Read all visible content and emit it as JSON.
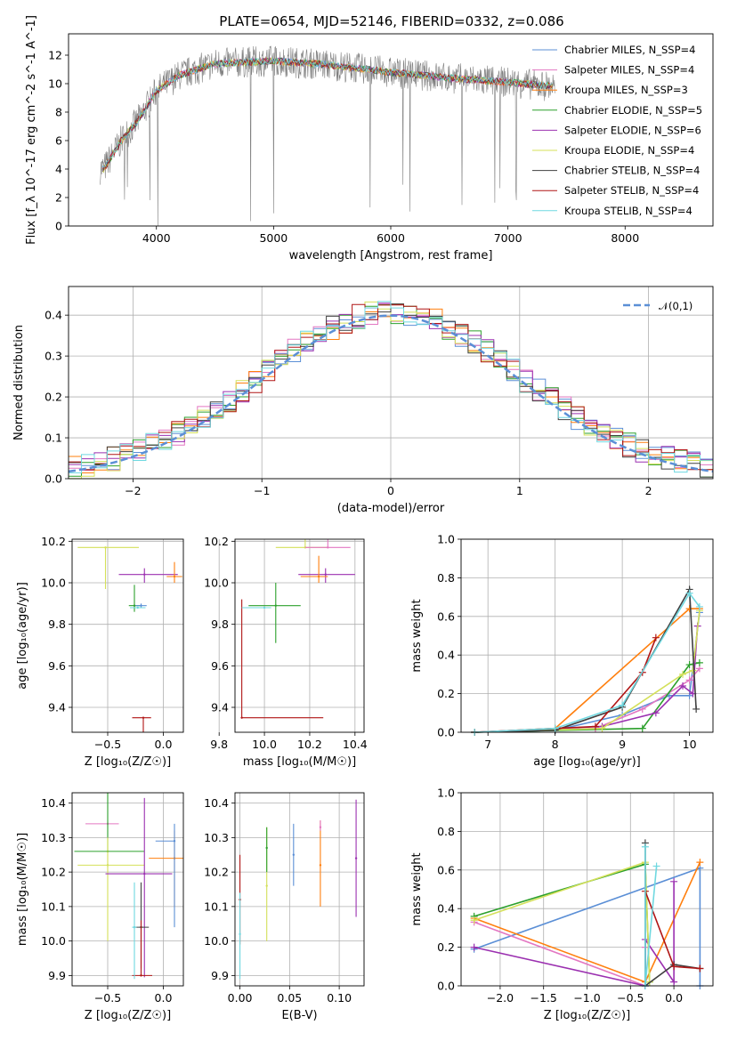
{
  "title": "PLATE=0654, MJD=52146, FIBERID=0332, z=0.086",
  "colors": {
    "Chabrier MILES": "#5b8fd6",
    "Salpeter MILES": "#e377c2",
    "Kroupa MILES": "#ff7f0e",
    "Chabrier ELODIE": "#2ca02c",
    "Salpeter ELODIE": "#9b30b0",
    "Kroupa ELODIE": "#d4e05a",
    "Chabrier STELIB": "#404040",
    "Salpeter STELIB": "#b01515",
    "Kroupa STELIB": "#6fd8e0",
    "data": "#808080",
    "normal": "#5b8fd6"
  },
  "chart_data": [
    {
      "id": "spectrum",
      "type": "line",
      "xlabel": "wavelength [Angstrom, rest frame]",
      "ylabel": "Flux [f_λ 10^-17 erg cm^-2 s^-1 A^-1]",
      "xticks": [
        "4000",
        "5000",
        "6000",
        "7000",
        "8000"
      ],
      "yticks": [
        "0",
        "2",
        "4",
        "6",
        "8",
        "10",
        "12"
      ],
      "xlim": [
        3250,
        8750
      ],
      "ylim": [
        0,
        13.5
      ],
      "grid": false,
      "legend_position": "top-right",
      "legend": [
        "Chabrier MILES, N_SSP=4",
        "Salpeter MILES, N_SSP=4",
        "Kroupa MILES, N_SSP=3",
        "Chabrier ELODIE, N_SSP=5",
        "Salpeter ELODIE, N_SSP=6",
        "Kroupa ELODIE, N_SSP=4",
        "Chabrier STELIB, N_SSP=4",
        "Salpeter STELIB, N_SSP=4",
        "Kroupa STELIB, N_SSP=4"
      ],
      "continuum": {
        "x": [
          3550,
          3700,
          3850,
          4000,
          4200,
          4500,
          5000,
          5500,
          6000,
          6500,
          7000,
          7400
        ],
        "y": [
          4.0,
          6.0,
          7.5,
          9.5,
          10.6,
          11.4,
          11.6,
          11.3,
          10.8,
          10.4,
          10.1,
          9.8
        ]
      },
      "noise_range": {
        "x": [
          3520,
          7400
        ],
        "amplitude": 1.0
      }
    },
    {
      "id": "residuals",
      "type": "histogram",
      "xlabel": "(data-model)/error",
      "ylabel": "Normed distribution",
      "xticks": [
        "−2",
        "−1",
        "0",
        "1",
        "2"
      ],
      "yticks": [
        "0.0",
        "0.1",
        "0.2",
        "0.3",
        "0.4"
      ],
      "xlim": [
        -2.5,
        2.5
      ],
      "ylim": [
        0,
        0.47
      ],
      "grid": true,
      "legend_position": "top-right",
      "legend": [
        "𝒩(0,1)"
      ],
      "bin_width": 0.1
    },
    {
      "id": "age-vs-Z",
      "type": "errorbar",
      "xlabel": "Z [log₁₀(Z/Z☉)]",
      "ylabel": "age  [log₁₀(age/yr)]",
      "xticks": [
        "−0.5",
        "0.0"
      ],
      "yticks": [
        "9.4",
        "9.6",
        "9.8",
        "10.0",
        "10.2"
      ],
      "xlim": [
        -0.82,
        0.18
      ],
      "ylim": [
        9.28,
        10.21
      ],
      "grid": true,
      "points": [
        {
          "x": -0.17,
          "y": 10.04,
          "xerr": [
            0.23,
            0.3
          ],
          "yerr": [
            0.04,
            0.03
          ],
          "series": "Salpeter ELODIE"
        },
        {
          "x": -0.52,
          "y": 10.17,
          "xerr": [
            0.25,
            0.3
          ],
          "yerr": [
            0.2,
            0.0
          ],
          "series": "Kroupa ELODIE"
        },
        {
          "x": 0.1,
          "y": 10.03,
          "xerr": [
            0.07,
            0.07
          ],
          "yerr": [
            0.03,
            0.07
          ],
          "series": "Kroupa MILES"
        },
        {
          "x": -0.26,
          "y": 9.89,
          "xerr": [
            0.05,
            0.05
          ],
          "yerr": [
            0.03,
            0.1
          ],
          "series": "Chabrier ELODIE"
        },
        {
          "x": -0.2,
          "y": 9.89,
          "xerr": [
            0.05,
            0.05
          ],
          "yerr": [
            0.01,
            0.01
          ],
          "series": "Chabrier MILES"
        },
        {
          "x": -0.18,
          "y": 9.35,
          "xerr": [
            0.1,
            0.07
          ],
          "yerr": [
            0.57,
            0.0
          ],
          "series": "Salpeter STELIB"
        },
        {
          "x": -0.23,
          "y": 9.88,
          "xerr": [
            0.07,
            0.07
          ],
          "yerr": [
            0.0,
            0.0
          ],
          "series": "Kroupa STELIB"
        }
      ]
    },
    {
      "id": "age-vs-mass",
      "type": "errorbar",
      "xlabel": "mass [log₁₀(M/M☉)]",
      "ylabel": "",
      "xticks": [
        "9.8",
        "10.0",
        "10.2",
        "10.4"
      ],
      "yticks": [
        "9.4",
        "9.6",
        "9.8",
        "10.0",
        "10.2"
      ],
      "xlim": [
        9.87,
        10.44
      ],
      "ylim": [
        9.28,
        10.21
      ],
      "grid": true,
      "points": [
        {
          "x": 10.27,
          "y": 10.04,
          "xerr": [
            0.12,
            0.13
          ],
          "yerr": [
            0.04,
            0.03
          ],
          "series": "Salpeter ELODIE"
        },
        {
          "x": 10.18,
          "y": 10.17,
          "xerr": [
            0.13,
            0.1
          ],
          "yerr": [
            0.0,
            0.2
          ],
          "series": "Kroupa ELODIE"
        },
        {
          "x": 10.24,
          "y": 10.03,
          "xerr": [
            0.08,
            0.04
          ],
          "yerr": [
            0.03,
            0.1
          ],
          "series": "Kroupa MILES"
        },
        {
          "x": 10.28,
          "y": 10.17,
          "xerr": [
            0.1,
            0.1
          ],
          "yerr": [
            0.0,
            0.04
          ],
          "series": "Salpeter MILES"
        },
        {
          "x": 10.05,
          "y": 9.89,
          "xerr": [
            0.12,
            0.11
          ],
          "yerr": [
            0.18,
            0.11
          ],
          "series": "Chabrier ELODIE"
        },
        {
          "x": 9.9,
          "y": 9.35,
          "xerr": [
            0.0,
            0.36
          ],
          "yerr": [
            0.0,
            0.57
          ],
          "series": "Salpeter STELIB"
        },
        {
          "x": 10.0,
          "y": 9.88,
          "xerr": [
            0.1,
            0.03
          ],
          "yerr": [
            0.0,
            0.0
          ],
          "series": "Kroupa STELIB"
        }
      ]
    },
    {
      "id": "massweight-vs-age",
      "type": "line",
      "xlabel": "age  [log₁₀(age/yr)]",
      "ylabel": "mass weight",
      "xticks": [
        "7",
        "8",
        "9",
        "10"
      ],
      "yticks": [
        "0.0",
        "0.2",
        "0.4",
        "0.6",
        "0.8",
        "1.0"
      ],
      "xlim": [
        6.6,
        10.35
      ],
      "ylim": [
        0,
        1
      ],
      "grid": true,
      "series": [
        {
          "name": "Chabrier MILES",
          "x": [
            6.8,
            8.0,
            9.0,
            9.7,
            10.0,
            10.15
          ],
          "y": [
            0.0,
            0.01,
            0.09,
            0.19,
            0.19,
            0.62
          ]
        },
        {
          "name": "Salpeter MILES",
          "x": [
            6.8,
            8.6,
            9.3,
            10.0,
            10.15
          ],
          "y": [
            0.0,
            0.02,
            0.12,
            0.27,
            0.33
          ]
        },
        {
          "name": "Kroupa MILES",
          "x": [
            6.8,
            8.0,
            10.0,
            10.15
          ],
          "y": [
            0.0,
            0.02,
            0.64,
            0.64
          ]
        },
        {
          "name": "Chabrier ELODIE",
          "x": [
            6.8,
            9.3,
            10.0,
            10.15
          ],
          "y": [
            0.0,
            0.02,
            0.35,
            0.36
          ]
        },
        {
          "name": "Salpeter ELODIE",
          "x": [
            6.8,
            8.7,
            9.5,
            9.9,
            10.05,
            10.12
          ],
          "y": [
            0.0,
            0.03,
            0.1,
            0.24,
            0.2,
            0.55
          ]
        },
        {
          "name": "Kroupa ELODIE",
          "x": [
            6.8,
            8.7,
            9.9,
            10.05,
            10.15
          ],
          "y": [
            0.0,
            0.02,
            0.3,
            0.32,
            0.63
          ]
        },
        {
          "name": "Chabrier STELIB",
          "x": [
            6.8,
            8.0,
            9.0,
            10.0,
            10.1
          ],
          "y": [
            0.0,
            0.01,
            0.13,
            0.74,
            0.12
          ]
        },
        {
          "name": "Salpeter STELIB",
          "x": [
            6.8,
            8.6,
            9.3,
            9.5
          ],
          "y": [
            0.0,
            0.03,
            0.31,
            0.49
          ]
        },
        {
          "name": "Kroupa STELIB",
          "x": [
            6.8,
            8.0,
            9.0,
            10.0,
            10.15
          ],
          "y": [
            0.0,
            0.02,
            0.14,
            0.72,
            0.65
          ]
        }
      ]
    },
    {
      "id": "mass-vs-Z",
      "type": "errorbar",
      "xlabel": "Z [log₁₀(Z/Z☉)]",
      "ylabel": "mass [log₁₀(M/M☉)]",
      "xticks": [
        "−0.5",
        "0.0"
      ],
      "yticks": [
        "9.9",
        "10.0",
        "10.1",
        "10.2",
        "10.3",
        "10.4"
      ],
      "xlim": [
        -0.82,
        0.18
      ],
      "ylim": [
        9.87,
        10.43
      ],
      "grid": true,
      "points": [
        {
          "x": -0.5,
          "y": 10.34,
          "xerr": [
            0.2,
            0.1
          ],
          "yerr": [
            0.0,
            0.0
          ],
          "series": "Salpeter MILES"
        },
        {
          "x": -0.5,
          "y": 10.26,
          "xerr": [
            0.3,
            0.33
          ],
          "yerr": [
            0.0,
            0.3
          ],
          "series": "Chabrier ELODIE"
        },
        {
          "x": -0.5,
          "y": 10.22,
          "xerr": [
            0.27,
            0.33
          ],
          "yerr": [
            0.22,
            0.08
          ],
          "series": "Kroupa ELODIE"
        },
        {
          "x": -0.17,
          "y": 10.195,
          "xerr": [
            0.35,
            0.25
          ],
          "yerr": [
            0.3,
            0.22
          ],
          "series": "Salpeter ELODIE"
        },
        {
          "x": 0.1,
          "y": 10.24,
          "xerr": [
            0.23,
            0.12
          ],
          "yerr": [
            0.14,
            0.08
          ],
          "series": "Kroupa MILES"
        },
        {
          "x": 0.1,
          "y": 10.29,
          "xerr": [
            0.17,
            0.0
          ],
          "yerr": [
            0.25,
            0.05
          ],
          "series": "Chabrier MILES"
        },
        {
          "x": -0.2,
          "y": 10.04,
          "xerr": [
            0.07,
            0.07
          ],
          "yerr": [
            0.12,
            0.13
          ],
          "series": "Chabrier STELIB"
        },
        {
          "x": -0.2,
          "y": 9.9,
          "xerr": [
            0.08,
            0.1
          ],
          "yerr": [
            0.0,
            0.16
          ],
          "series": "Salpeter STELIB"
        },
        {
          "x": -0.26,
          "y": 10.04,
          "xerr": [
            0.02,
            0.02
          ],
          "yerr": [
            0.15,
            0.13
          ],
          "series": "Kroupa STELIB"
        }
      ]
    },
    {
      "id": "mass-vs-EBV",
      "type": "errorbar",
      "xlabel": "E(B-V)",
      "ylabel": "",
      "xticks": [
        "0.00",
        "0.05",
        "0.10"
      ],
      "yticks": [
        "9.9",
        "10.0",
        "10.1",
        "10.2",
        "10.3",
        "10.4"
      ],
      "xlim": [
        -0.005,
        0.125
      ],
      "ylim": [
        9.87,
        10.43
      ],
      "grid": true,
      "points": [
        {
          "x": 0.0,
          "y": 10.12,
          "xerr": [
            0,
            0
          ],
          "yerr": [
            0.13,
            0.13
          ],
          "series": "Salpeter STELIB"
        },
        {
          "x": 0.0,
          "y": 10.02,
          "xerr": [
            0,
            0
          ],
          "yerr": [
            0.13,
            0.12
          ],
          "series": "Kroupa STELIB"
        },
        {
          "x": 0.027,
          "y": 10.16,
          "xerr": [
            0,
            0
          ],
          "yerr": [
            0.16,
            0.17
          ],
          "series": "Kroupa ELODIE"
        },
        {
          "x": 0.027,
          "y": 10.27,
          "xerr": [
            0,
            0
          ],
          "yerr": [
            0.07,
            0.06
          ],
          "series": "Chabrier ELODIE"
        },
        {
          "x": 0.054,
          "y": 10.25,
          "xerr": [
            0,
            0
          ],
          "yerr": [
            0.09,
            0.09
          ],
          "series": "Chabrier MILES"
        },
        {
          "x": 0.081,
          "y": 10.22,
          "xerr": [
            0,
            0
          ],
          "yerr": [
            0.12,
            0.13
          ],
          "series": "Kroupa MILES"
        },
        {
          "x": 0.081,
          "y": 10.33,
          "xerr": [
            0,
            0
          ],
          "yerr": [
            0.01,
            0.02
          ],
          "series": "Salpeter MILES"
        },
        {
          "x": 0.117,
          "y": 10.24,
          "xerr": [
            0,
            0
          ],
          "yerr": [
            0.17,
            0.17
          ],
          "series": "Salpeter ELODIE"
        }
      ]
    },
    {
      "id": "massweight-vs-Z",
      "type": "line",
      "xlabel": "Z [log₁₀(Z/Z☉)]",
      "ylabel": "mass weight",
      "xticks": [
        "−2.0",
        "−1.5",
        "−1.0",
        "−0.5",
        "0.0"
      ],
      "yticks": [
        "0.0",
        "0.2",
        "0.4",
        "0.6",
        "0.8",
        "1.0"
      ],
      "xlim": [
        -2.45,
        0.45
      ],
      "ylim": [
        0,
        1
      ],
      "grid": true,
      "series": [
        {
          "name": "Chabrier MILES",
          "x": [
            -2.3,
            0.3,
            0.3
          ],
          "y": [
            0.19,
            0.61,
            0.0
          ]
        },
        {
          "name": "Salpeter MILES",
          "x": [
            -2.3,
            -0.33,
            -0.33
          ],
          "y": [
            0.33,
            0.0,
            0.2
          ]
        },
        {
          "name": "Kroupa MILES",
          "x": [
            -2.3,
            -0.33,
            0.3
          ],
          "y": [
            0.35,
            0.02,
            0.64
          ]
        },
        {
          "name": "Chabrier ELODIE",
          "x": [
            -2.3,
            -0.33,
            -0.28
          ],
          "y": [
            0.36,
            0.63,
            0.02
          ]
        },
        {
          "name": "Salpeter ELODIE",
          "x": [
            -2.3,
            -0.33,
            -0.33,
            0.0,
            0.0
          ],
          "y": [
            0.2,
            0.0,
            0.24,
            0.02,
            0.54
          ]
        },
        {
          "name": "Kroupa ELODIE",
          "x": [
            -2.3,
            -0.33,
            -0.28
          ],
          "y": [
            0.34,
            0.64,
            0.02
          ]
        },
        {
          "name": "Chabrier STELIB",
          "x": [
            -0.33,
            -0.33,
            0.0,
            0.3
          ],
          "y": [
            0.74,
            0.0,
            0.11,
            0.09
          ]
        },
        {
          "name": "Salpeter STELIB",
          "x": [
            -0.33,
            0.0,
            0.3
          ],
          "y": [
            0.49,
            0.1,
            0.09
          ]
        },
        {
          "name": "Kroupa STELIB",
          "x": [
            -0.33,
            -0.33,
            -0.2
          ],
          "y": [
            0.72,
            0.0,
            0.62
          ]
        }
      ]
    }
  ]
}
